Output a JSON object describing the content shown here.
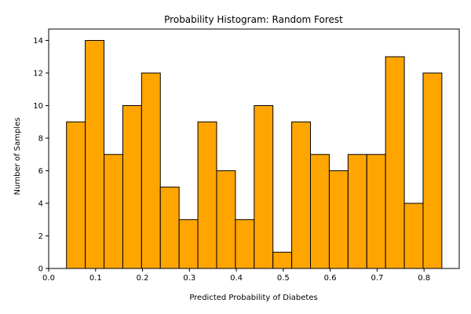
{
  "chart_data": {
    "type": "bar",
    "title": "Probability Histogram: Random Forest",
    "xlabel": "Predicted Probability of Diabetes",
    "ylabel": "Number of Samples",
    "xlim": [
      0.0,
      0.875
    ],
    "ylim": [
      0,
      14.7
    ],
    "x_ticks": [
      0.0,
      0.1,
      0.2,
      0.3,
      0.4,
      0.5,
      0.6,
      0.7,
      0.8
    ],
    "x_tick_labels": [
      "0.0",
      "0.1",
      "0.2",
      "0.3",
      "0.4",
      "0.5",
      "0.6",
      "0.7",
      "0.8"
    ],
    "y_ticks": [
      0,
      2,
      4,
      6,
      8,
      10,
      12,
      14
    ],
    "y_tick_labels": [
      "0",
      "2",
      "4",
      "6",
      "8",
      "10",
      "12",
      "14"
    ],
    "bin_edges": [
      0.038,
      0.078,
      0.118,
      0.158,
      0.198,
      0.238,
      0.278,
      0.318,
      0.358,
      0.398,
      0.438,
      0.478,
      0.518,
      0.558,
      0.598,
      0.638,
      0.678,
      0.718,
      0.758,
      0.798,
      0.838
    ],
    "values": [
      9,
      14,
      7,
      10,
      12,
      5,
      3,
      9,
      6,
      3,
      10,
      1,
      9,
      7,
      6,
      7,
      7,
      13,
      4,
      12
    ],
    "bar_color": "#ffa500",
    "edge_color": "#000000",
    "grid": false,
    "legend": "none"
  }
}
